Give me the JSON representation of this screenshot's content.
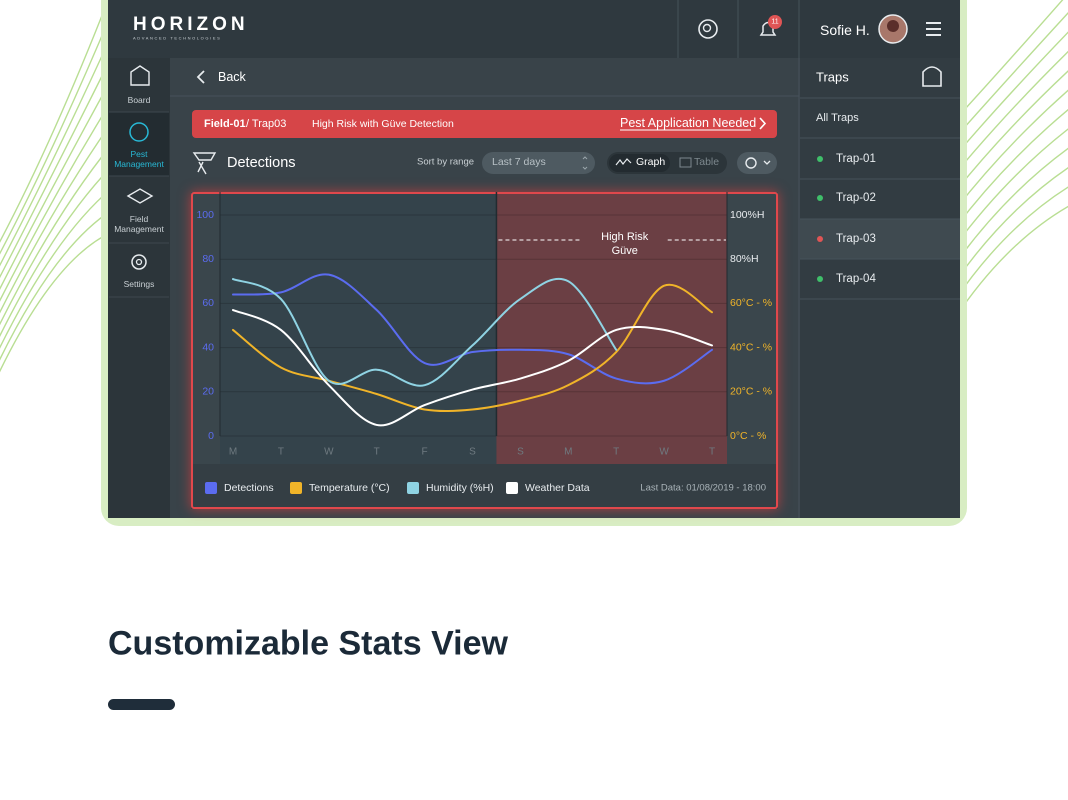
{
  "brand": {
    "name": "HORIZON",
    "tagline": "ADVANCED TECHNOLOGIES"
  },
  "header": {
    "notifications": 11,
    "user": "Sofie H."
  },
  "sidebar": [
    "Board",
    "Pest Management",
    "Field Management",
    "Settings"
  ],
  "back": "Back",
  "alert": {
    "field": "Field-01",
    "trap": "/ Trap03",
    "message": "High Risk with Güve Detection",
    "action": "Pest Application Needed"
  },
  "toolbar": {
    "title": "Detections",
    "sort_label": "Sort by range",
    "range": "Last 7 days",
    "views": [
      "Graph",
      "Table"
    ]
  },
  "chart_data": {
    "type": "line",
    "categories": [
      "M",
      "T",
      "W",
      "T",
      "F",
      "S",
      "S",
      "M",
      "T",
      "W",
      "T"
    ],
    "series": [
      {
        "name": "Detections",
        "color": "#5b6cf0",
        "values": [
          64,
          65,
          73,
          57,
          33,
          38,
          39,
          37,
          26,
          25,
          39
        ]
      },
      {
        "name": "Temperature (°C)",
        "color": "#f0b429",
        "values": [
          48,
          31,
          25,
          19,
          12,
          12,
          16,
          23,
          38,
          68,
          56
        ]
      },
      {
        "name": "Humidity (%H)",
        "color": "#8fd3e3",
        "values": [
          71,
          62,
          25,
          30,
          23,
          41,
          62,
          70,
          39,
          null,
          null
        ]
      },
      {
        "name": "Weather Data",
        "color": "#ffffff",
        "values": [
          57,
          48,
          23,
          5,
          14,
          21,
          26,
          34,
          48,
          48,
          41
        ]
      }
    ],
    "ylim": [
      0,
      100
    ],
    "yticks": [
      0,
      20,
      40,
      60,
      80,
      100
    ],
    "ytick_color": "#5b6cf0",
    "grid": true,
    "y2lim": [
      0,
      100
    ],
    "y2ticks": [
      {
        "value": 0,
        "label": "0°C - %"
      },
      {
        "value": 20,
        "label": "20°C - %"
      },
      {
        "value": 40,
        "label": "40°C - %"
      },
      {
        "value": 60,
        "label": "60°C - %"
      },
      {
        "value": 80,
        "label": "80%H"
      },
      {
        "value": 100,
        "label": "100%H"
      }
    ],
    "y2tick_colors": [
      "#f0b429",
      "#f0b429",
      "#f0b429",
      "#f0b429",
      "#e8ecef",
      "#e8ecef"
    ],
    "annotation": [
      "High Risk",
      "Güve"
    ],
    "last_data": "Last Data: 01/08/2019 - 18:00"
  },
  "traps": {
    "title": "Traps",
    "all": "All Traps",
    "items": [
      {
        "name": "Trap-01",
        "status_color": "#3fbf6a"
      },
      {
        "name": "Trap-02",
        "status_color": "#3fbf6a"
      },
      {
        "name": "Trap-03",
        "status_color": "#e05555"
      },
      {
        "name": "Trap-04",
        "status_color": "#3fbf6a"
      }
    ]
  },
  "footer": {
    "heading": "Customizable Stats View"
  }
}
